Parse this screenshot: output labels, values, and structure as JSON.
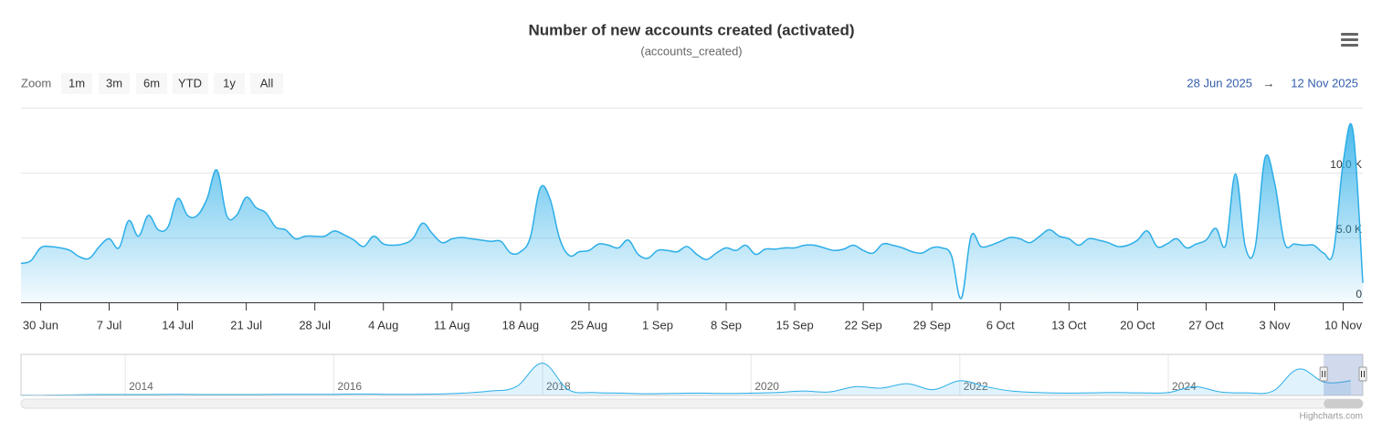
{
  "chart_data": {
    "type": "area",
    "title": "Number of new accounts created (activated)",
    "subtitle": "(accounts_created)",
    "range_selector": {
      "label": "Zoom",
      "buttons": [
        "1m",
        "3m",
        "6m",
        "YTD",
        "1y",
        "All"
      ],
      "from": "28 Jun 2025",
      "arrow": "→",
      "to": "12 Nov 2025"
    },
    "credits": "Highcharts.com",
    "x": [
      "2025-06-28",
      "2025-06-29",
      "2025-06-30",
      "2025-07-01",
      "2025-07-02",
      "2025-07-03",
      "2025-07-04",
      "2025-07-05",
      "2025-07-06",
      "2025-07-07",
      "2025-07-08",
      "2025-07-09",
      "2025-07-10",
      "2025-07-11",
      "2025-07-12",
      "2025-07-13",
      "2025-07-14",
      "2025-07-15",
      "2025-07-16",
      "2025-07-17",
      "2025-07-18",
      "2025-07-19",
      "2025-07-20",
      "2025-07-21",
      "2025-07-22",
      "2025-07-23",
      "2025-07-24",
      "2025-07-25",
      "2025-07-26",
      "2025-07-27",
      "2025-07-28",
      "2025-07-29",
      "2025-07-30",
      "2025-07-31",
      "2025-08-01",
      "2025-08-02",
      "2025-08-03",
      "2025-08-04",
      "2025-08-05",
      "2025-08-06",
      "2025-08-07",
      "2025-08-08",
      "2025-08-09",
      "2025-08-10",
      "2025-08-11",
      "2025-08-12",
      "2025-08-13",
      "2025-08-14",
      "2025-08-15",
      "2025-08-16",
      "2025-08-17",
      "2025-08-18",
      "2025-08-19",
      "2025-08-20",
      "2025-08-21",
      "2025-08-22",
      "2025-08-23",
      "2025-08-24",
      "2025-08-25",
      "2025-08-26",
      "2025-08-27",
      "2025-08-28",
      "2025-08-29",
      "2025-08-30",
      "2025-08-31",
      "2025-09-01",
      "2025-09-02",
      "2025-09-03",
      "2025-09-04",
      "2025-09-05",
      "2025-09-06",
      "2025-09-07",
      "2025-09-08",
      "2025-09-09",
      "2025-09-10",
      "2025-09-11",
      "2025-09-12",
      "2025-09-13",
      "2025-09-14",
      "2025-09-15",
      "2025-09-16",
      "2025-09-17",
      "2025-09-18",
      "2025-09-19",
      "2025-09-20",
      "2025-09-21",
      "2025-09-22",
      "2025-09-23",
      "2025-09-24",
      "2025-09-25",
      "2025-09-26",
      "2025-09-27",
      "2025-09-28",
      "2025-09-29",
      "2025-09-30",
      "2025-10-01",
      "2025-10-02",
      "2025-10-03",
      "2025-10-04",
      "2025-10-05",
      "2025-10-06",
      "2025-10-07",
      "2025-10-08",
      "2025-10-09",
      "2025-10-10",
      "2025-10-11",
      "2025-10-12",
      "2025-10-13",
      "2025-10-14",
      "2025-10-15",
      "2025-10-16",
      "2025-10-17",
      "2025-10-18",
      "2025-10-19",
      "2025-10-20",
      "2025-10-21",
      "2025-10-22",
      "2025-10-23",
      "2025-10-24",
      "2025-10-25",
      "2025-10-26",
      "2025-10-27",
      "2025-10-28",
      "2025-10-29",
      "2025-10-30",
      "2025-10-31",
      "2025-11-01",
      "2025-11-02",
      "2025-11-03",
      "2025-11-04",
      "2025-11-05",
      "2025-11-06",
      "2025-11-07",
      "2025-11-08",
      "2025-11-09",
      "2025-11-10",
      "2025-11-11",
      "2025-11-12"
    ],
    "values": [
      3000,
      3200,
      4200,
      4300,
      4200,
      4000,
      3500,
      3400,
      4300,
      4900,
      4200,
      6300,
      5100,
      6700,
      5600,
      5800,
      8000,
      6700,
      6700,
      8000,
      10200,
      6700,
      6700,
      8100,
      7300,
      6900,
      5800,
      5600,
      4900,
      5100,
      5100,
      5100,
      5500,
      5200,
      4800,
      4300,
      5100,
      4500,
      4400,
      4500,
      4900,
      6100,
      5300,
      4600,
      4900,
      5000,
      4900,
      4800,
      4700,
      4700,
      3800,
      3900,
      5000,
      8800,
      8000,
      4900,
      3600,
      3900,
      4000,
      4500,
      4400,
      4200,
      4800,
      3700,
      3400,
      4000,
      4000,
      3900,
      4300,
      3700,
      3300,
      3800,
      4200,
      4000,
      4400,
      3700,
      4100,
      4100,
      4200,
      4200,
      4400,
      4400,
      4200,
      4000,
      4100,
      4400,
      4000,
      3800,
      4500,
      4400,
      4200,
      3900,
      3800,
      4200,
      4200,
      3600,
      300,
      5100,
      4300,
      4400,
      4700,
      5000,
      4900,
      4600,
      5100,
      5600,
      5100,
      4900,
      4400,
      4900,
      4800,
      4600,
      4300,
      4400,
      4800,
      5500,
      4300,
      4500,
      4900,
      4200,
      4500,
      4800,
      5700,
      4400,
      9900,
      4300,
      4200,
      11100,
      9200,
      4600,
      4500,
      4400,
      4400,
      3800,
      3900,
      10800,
      13200,
      1500
    ],
    "color": "#2caee8",
    "xlim": [
      "2025-06-28",
      "2025-11-12"
    ],
    "xticks": [
      {
        "value": "2025-06-30",
        "label": "30 Jun"
      },
      {
        "value": "2025-07-07",
        "label": "7 Jul"
      },
      {
        "value": "2025-07-14",
        "label": "14 Jul"
      },
      {
        "value": "2025-07-21",
        "label": "21 Jul"
      },
      {
        "value": "2025-07-28",
        "label": "28 Jul"
      },
      {
        "value": "2025-08-04",
        "label": "4 Aug"
      },
      {
        "value": "2025-08-11",
        "label": "11 Aug"
      },
      {
        "value": "2025-08-18",
        "label": "18 Aug"
      },
      {
        "value": "2025-08-25",
        "label": "25 Aug"
      },
      {
        "value": "2025-09-01",
        "label": "1 Sep"
      },
      {
        "value": "2025-09-08",
        "label": "8 Sep"
      },
      {
        "value": "2025-09-15",
        "label": "15 Sep"
      },
      {
        "value": "2025-09-22",
        "label": "22 Sep"
      },
      {
        "value": "2025-09-29",
        "label": "29 Sep"
      },
      {
        "value": "2025-10-06",
        "label": "6 Oct"
      },
      {
        "value": "2025-10-13",
        "label": "13 Oct"
      },
      {
        "value": "2025-10-20",
        "label": "20 Oct"
      },
      {
        "value": "2025-10-27",
        "label": "27 Oct"
      },
      {
        "value": "2025-11-03",
        "label": "3 Nov"
      },
      {
        "value": "2025-11-10",
        "label": "10 Nov"
      }
    ],
    "ylim": [
      0,
      15000
    ],
    "yticks": [
      0,
      {
        "value": 5000,
        "label": "5.0 K"
      },
      {
        "value": 10000,
        "label": "10.0 K"
      }
    ],
    "grid": true,
    "navigator": {
      "x": [
        "2013-01-01",
        "2013-04-01",
        "2013-07-01",
        "2013-10-01",
        "2014-01-01",
        "2014-04-01",
        "2014-07-01",
        "2014-10-01",
        "2015-01-01",
        "2015-04-01",
        "2015-07-01",
        "2015-10-01",
        "2016-01-01",
        "2016-04-01",
        "2016-07-01",
        "2016-10-01",
        "2017-01-01",
        "2017-04-01",
        "2017-07-01",
        "2017-10-01",
        "2018-01-01",
        "2018-04-01",
        "2018-07-01",
        "2018-10-01",
        "2019-01-01",
        "2019-04-01",
        "2019-07-01",
        "2019-10-01",
        "2020-01-01",
        "2020-04-01",
        "2020-07-01",
        "2020-10-01",
        "2021-01-01",
        "2021-04-01",
        "2021-07-01",
        "2021-10-01",
        "2022-01-01",
        "2022-04-01",
        "2022-07-01",
        "2022-10-01",
        "2023-01-01",
        "2023-04-01",
        "2023-07-01",
        "2023-10-01",
        "2024-01-01",
        "2024-04-01",
        "2024-07-01",
        "2024-10-01",
        "2025-01-01",
        "2025-04-01",
        "2025-07-01",
        "2025-10-01"
      ],
      "values": [
        100,
        100,
        200,
        300,
        300,
        300,
        400,
        300,
        300,
        300,
        400,
        400,
        400,
        500,
        400,
        400,
        500,
        800,
        1500,
        3000,
        11000,
        2000,
        1000,
        800,
        600,
        700,
        800,
        700,
        800,
        1000,
        1500,
        1200,
        3000,
        2500,
        4000,
        2000,
        5000,
        3000,
        1500,
        1000,
        800,
        900,
        1000,
        900,
        1000,
        3000,
        1200,
        900,
        1500,
        9000,
        4500,
        5000
      ],
      "xlim": [
        "2013-01-01",
        "2025-11-12"
      ],
      "ylim": [
        0,
        14000
      ],
      "xticks": [
        {
          "value": "2014-01-01",
          "label": "2014"
        },
        {
          "value": "2016-01-01",
          "label": "2016"
        },
        {
          "value": "2018-01-01",
          "label": "2018"
        },
        {
          "value": "2020-01-01",
          "label": "2020"
        },
        {
          "value": "2022-01-01",
          "label": "2022"
        },
        {
          "value": "2024-01-01",
          "label": "2024"
        }
      ]
    }
  }
}
